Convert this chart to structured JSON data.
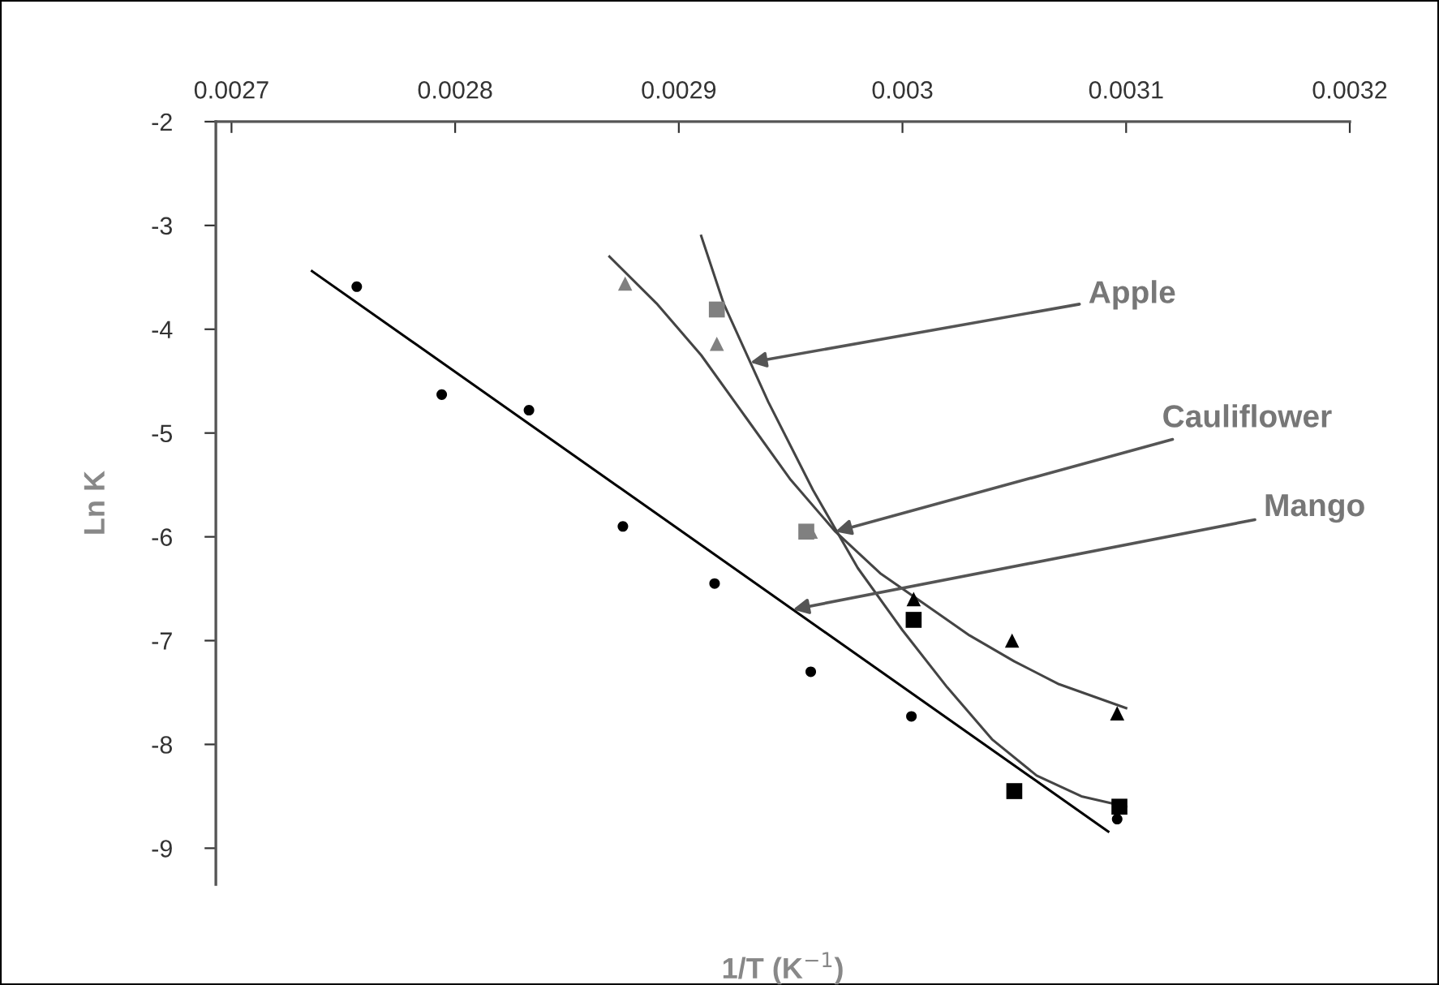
{
  "chart_data": {
    "type": "scatter",
    "xlabel": "1/T (K$^{−1}$)",
    "ylabel": "Ln K",
    "xlim": [
      0.002693,
      0.0032
    ],
    "xticks": [
      {
        "value": 0.0027,
        "label": "0.0027"
      },
      {
        "value": 0.0028,
        "label": "0.0028"
      },
      {
        "value": 0.0029,
        "label": "0.0029"
      },
      {
        "value": 0.003,
        "label": "0.003"
      },
      {
        "value": 0.0031,
        "label": "0.0031"
      },
      {
        "value": 0.0032,
        "label": "0.0032"
      }
    ],
    "ylim": [
      -9.35,
      -2
    ],
    "yticks": [
      -2,
      -3,
      -4,
      -5,
      -6,
      -7,
      -8,
      -9
    ],
    "grid": false,
    "legend": false,
    "series": [
      {
        "marker": "circle",
        "color": "#000000",
        "x": [
          0.002756,
          0.002794,
          0.002833,
          0.002875,
          0.002916,
          0.002959,
          0.003004,
          0.003096
        ],
        "values": [
          -3.59,
          -4.63,
          -4.78,
          -5.9,
          -6.45,
          -7.3,
          -7.73,
          -8.72
        ]
      },
      {
        "type": "line",
        "line_style": "solid",
        "color": "#000000",
        "x": [
          0.002736,
          0.003092
        ],
        "values": [
          -3.44,
          -8.84
        ]
      },
      {
        "marker": "square",
        "colors": [
          "#808080",
          "#808080",
          "#000000",
          "#000000",
          "#000000"
        ],
        "x": [
          0.002917,
          0.002957,
          0.003005,
          0.00305,
          0.003097
        ],
        "values": [
          -3.81,
          -5.95,
          -6.8,
          -8.45,
          -8.6
        ]
      },
      {
        "type": "line",
        "line_style": "solid",
        "color": "#444444",
        "x": [
          0.00291,
          0.00292,
          0.00294,
          0.00296,
          0.00298,
          0.003,
          0.00302,
          0.00304,
          0.00306,
          0.00308,
          0.0031
        ],
        "values": [
          -3.1,
          -3.75,
          -4.7,
          -5.55,
          -6.3,
          -6.9,
          -7.45,
          -7.95,
          -8.3,
          -8.5,
          -8.6
        ]
      },
      {
        "marker": "triangle",
        "colors": [
          "#808080",
          "#808080",
          "#808080",
          "#000000",
          "#000000",
          "#000000"
        ],
        "x": [
          0.002876,
          0.002917,
          0.002959,
          0.003005,
          0.003049,
          0.003096
        ],
        "values": [
          -3.56,
          -4.14,
          -5.95,
          -6.6,
          -7.0,
          -7.7
        ]
      },
      {
        "type": "line",
        "line_style": "solid",
        "color": "#444444",
        "x": [
          0.002869,
          0.00289,
          0.00291,
          0.00293,
          0.00295,
          0.00297,
          0.00299,
          0.00301,
          0.00303,
          0.00305,
          0.00307,
          0.0031
        ],
        "values": [
          -3.3,
          -3.75,
          -4.25,
          -4.85,
          -5.45,
          -5.95,
          -6.35,
          -6.65,
          -6.95,
          -7.2,
          -7.42,
          -7.65
        ]
      }
    ],
    "annotations": [
      {
        "text": "Apple",
        "x": 0.002932,
        "y": -4.32
      },
      {
        "text": "Cauliflower",
        "x": 0.00297,
        "y": -5.95
      },
      {
        "text": "Mango",
        "x": 0.002951,
        "y": -6.7
      }
    ]
  }
}
